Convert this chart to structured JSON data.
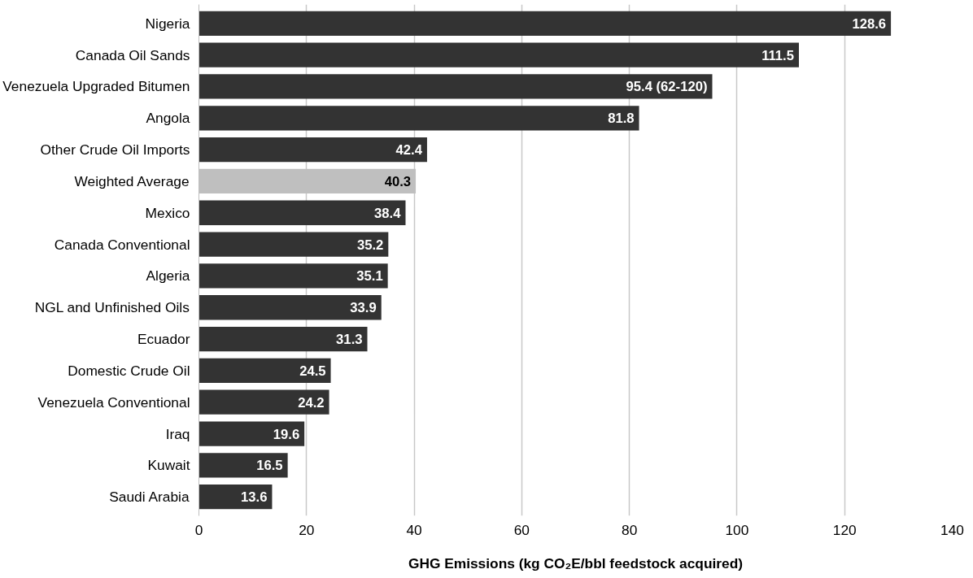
{
  "chart_data": {
    "type": "bar",
    "orientation": "horizontal",
    "categories": [
      "Nigeria",
      "Canada Oil Sands",
      "Venezuela Upgraded Bitumen",
      "Angola",
      "Other Crude Oil Imports",
      "Weighted Average",
      "Mexico",
      "Canada Conventional",
      "Algeria",
      "NGL and Unfinished Oils",
      "Ecuador",
      "Domestic Crude Oil",
      "Venezuela Conventional",
      "Iraq",
      "Kuwait",
      "Saudi Arabia"
    ],
    "values": [
      128.6,
      111.5,
      95.4,
      81.8,
      42.4,
      40.3,
      38.4,
      35.2,
      35.1,
      33.9,
      31.3,
      24.5,
      24.2,
      19.6,
      16.5,
      13.6
    ],
    "value_labels": [
      "128.6",
      "111.5",
      "95.4 (62-120)",
      "81.8",
      "42.4",
      "40.3",
      "38.4",
      "35.2",
      "35.1",
      "33.9",
      "31.3",
      "24.5",
      "24.2",
      "19.6",
      "16.5",
      "13.6"
    ],
    "colors": [
      "#333333",
      "#333333",
      "#333333",
      "#333333",
      "#333333",
      "#bfbfbf",
      "#333333",
      "#333333",
      "#333333",
      "#333333",
      "#333333",
      "#333333",
      "#333333",
      "#333333",
      "#333333",
      "#333333"
    ],
    "xlabel": "GHG Emissions (kg CO₂E/bbl feedstock acquired)",
    "xlim": [
      0,
      140
    ],
    "xticks": [
      0,
      20,
      40,
      60,
      80,
      100,
      120,
      140
    ],
    "grid": "x"
  }
}
